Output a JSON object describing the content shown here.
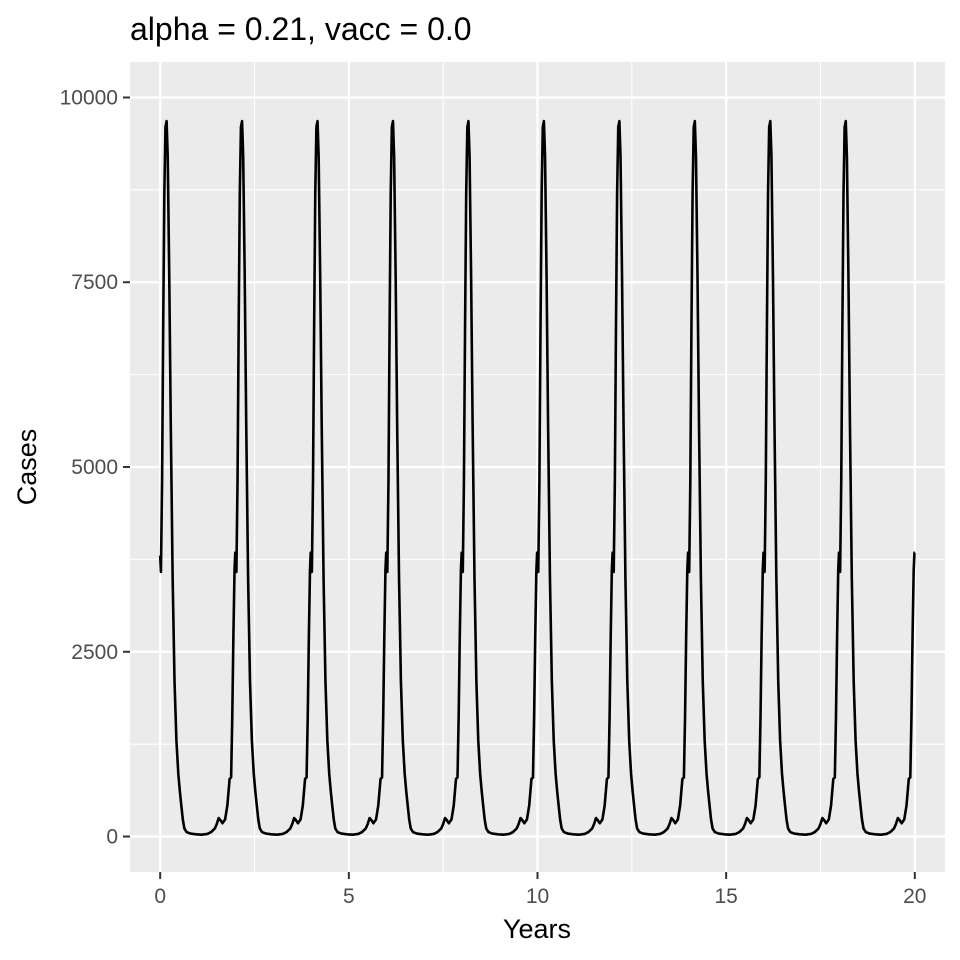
{
  "chart_data": {
    "type": "line",
    "title": "alpha = 0.21, vacc = 0.0",
    "xlabel": "Years",
    "ylabel": "Cases",
    "xlim": [
      -0.8,
      20.8
    ],
    "ylim": [
      -480,
      10480
    ],
    "x_ticks": [
      0,
      5,
      10,
      15,
      20
    ],
    "y_ticks": [
      0,
      2500,
      5000,
      7500,
      10000
    ],
    "x_tick_labels": [
      "0",
      "5",
      "10",
      "15",
      "20"
    ],
    "y_tick_labels": [
      "0",
      "2500",
      "5000",
      "7500",
      "10000"
    ],
    "grid": true,
    "legend": "none",
    "colors": {
      "panel": "#ebebeb",
      "grid": "#ffffff",
      "line": "#000000",
      "tick_text": "#4d4d4d",
      "tick_mark": "#333333"
    },
    "series": [
      {
        "period_years": 2,
        "repeat_until": 20,
        "cycle": [
          [
            0.0,
            3800
          ],
          [
            0.02,
            3580
          ],
          [
            0.05,
            4800
          ],
          [
            0.08,
            6900
          ],
          [
            0.11,
            8700
          ],
          [
            0.14,
            9600
          ],
          [
            0.17,
            9680
          ],
          [
            0.2,
            9200
          ],
          [
            0.24,
            7600
          ],
          [
            0.28,
            5600
          ],
          [
            0.33,
            3500
          ],
          [
            0.38,
            2100
          ],
          [
            0.43,
            1300
          ],
          [
            0.48,
            850
          ],
          [
            0.52,
            620
          ],
          [
            0.56,
            420
          ],
          [
            0.6,
            230
          ],
          [
            0.64,
            110
          ],
          [
            0.7,
            60
          ],
          [
            0.8,
            40
          ],
          [
            0.95,
            30
          ],
          [
            1.1,
            25
          ],
          [
            1.25,
            35
          ],
          [
            1.35,
            60
          ],
          [
            1.45,
            110
          ],
          [
            1.5,
            170
          ],
          [
            1.55,
            250
          ],
          [
            1.6,
            220
          ],
          [
            1.65,
            180
          ],
          [
            1.72,
            230
          ],
          [
            1.78,
            420
          ],
          [
            1.84,
            780
          ],
          [
            1.88,
            800
          ],
          [
            1.91,
            1600
          ],
          [
            1.94,
            2700
          ],
          [
            1.97,
            3600
          ],
          [
            1.99,
            3840
          ]
        ]
      }
    ]
  }
}
